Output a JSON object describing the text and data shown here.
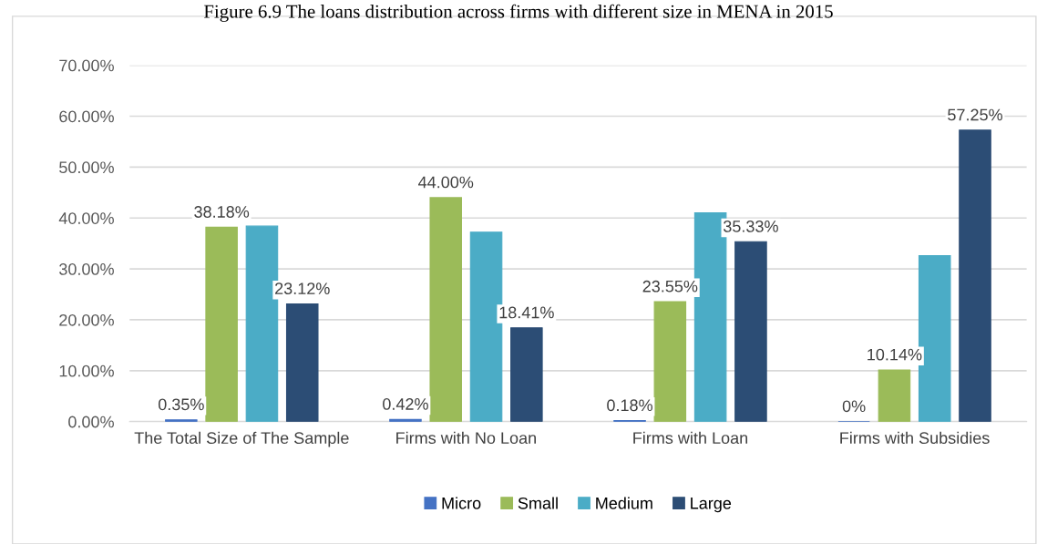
{
  "chart_data": {
    "type": "bar",
    "title": "Figure 6.9 The loans distribution across firms with different size in MENA in 2015",
    "categories": [
      "The Total Size of The Sample",
      "Firms with No Loan",
      "Firms with Loan",
      "Firms with Subsidies"
    ],
    "series": [
      {
        "name": "Micro",
        "color": "#4472c4",
        "values": [
          0.35,
          0.42,
          0.18,
          0
        ],
        "value_labels": [
          "0.35%",
          "0.42%",
          "0.18%",
          "0%"
        ]
      },
      {
        "name": "Small",
        "color": "#9bbb59",
        "values": [
          38.18,
          44.0,
          23.55,
          10.14
        ],
        "value_labels": [
          "38.18%",
          "44.00%",
          "23.55%",
          "10.14%"
        ]
      },
      {
        "name": "Medium",
        "color": "#4bacc6",
        "values": [
          38.4,
          37.2,
          41.0,
          32.6
        ]
      },
      {
        "name": "Large",
        "color": "#2c4d75",
        "values": [
          23.12,
          18.41,
          35.33,
          57.25
        ],
        "value_labels": [
          "23.12%",
          "18.41%",
          "35.33%",
          "57.25%"
        ]
      }
    ],
    "ylim": [
      0,
      70
    ],
    "yticks": [
      {
        "value": 0,
        "label": "0.00%"
      },
      {
        "value": 10,
        "label": "10.00%"
      },
      {
        "value": 20,
        "label": "20.00%"
      },
      {
        "value": 30,
        "label": "30.00%"
      },
      {
        "value": 40,
        "label": "40.00%"
      },
      {
        "value": 50,
        "label": "50.00%"
      },
      {
        "value": 60,
        "label": "60.00%"
      },
      {
        "value": 70,
        "label": "70.00%"
      }
    ],
    "grid": "y",
    "legend": "bottom"
  }
}
